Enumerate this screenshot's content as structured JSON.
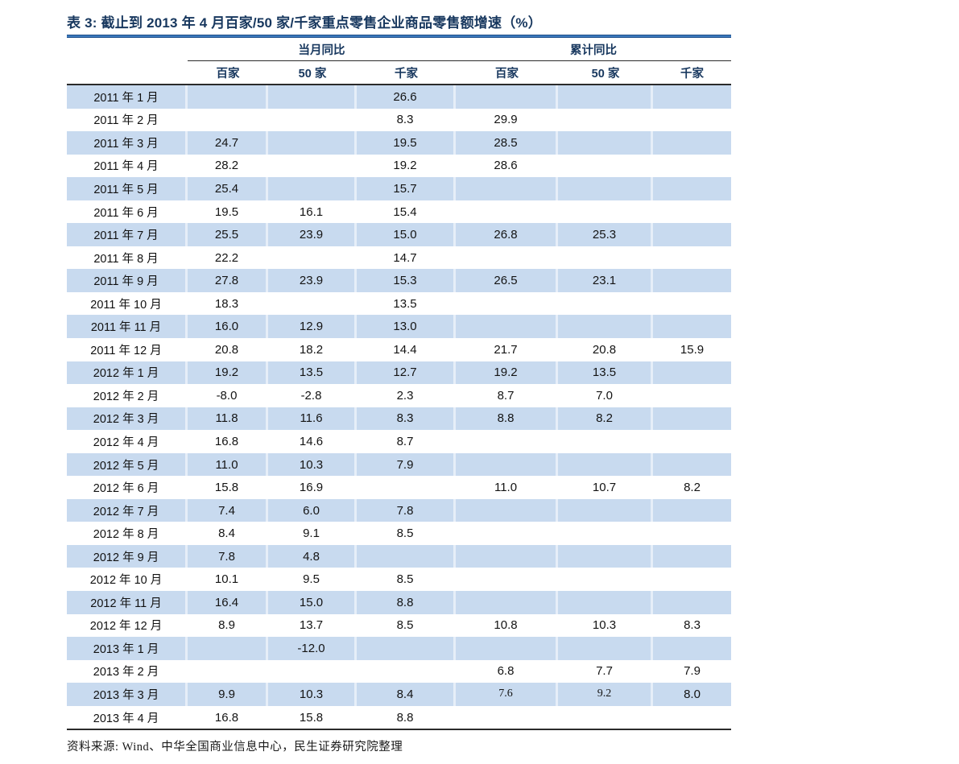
{
  "title": "表 3:  截止到 2013 年 4 月百家/50 家/千家重点零售企业商品零售额增速（%）",
  "source": "资料来源: Wind、中华全国商业信息中心，民生证券研究院整理",
  "colors": {
    "title_text": "#17375E",
    "header_text": "#17375E",
    "title_rule_blue": "#3B79BC",
    "dark_rule": "#2B2B2B",
    "row_band": "#C8DAEF"
  },
  "table": {
    "group_headers": [
      "当月同比",
      "累计同比"
    ],
    "sub_headers": [
      "百家",
      "50 家",
      "千家",
      "百家",
      "50 家",
      "千家"
    ],
    "rows": [
      {
        "label": "2011 年 1 月",
        "values": [
          "",
          "",
          "26.6",
          "",
          "",
          ""
        ]
      },
      {
        "label": "2011 年 2 月",
        "values": [
          "",
          "",
          "8.3",
          "29.9",
          "",
          ""
        ]
      },
      {
        "label": "2011 年 3 月",
        "values": [
          "24.7",
          "",
          "19.5",
          "28.5",
          "",
          ""
        ]
      },
      {
        "label": "2011 年 4 月",
        "values": [
          "28.2",
          "",
          "19.2",
          "28.6",
          "",
          ""
        ]
      },
      {
        "label": "2011 年 5 月",
        "values": [
          "25.4",
          "",
          "15.7",
          "",
          "",
          ""
        ]
      },
      {
        "label": "2011 年 6 月",
        "values": [
          "19.5",
          "16.1",
          "15.4",
          "",
          "",
          ""
        ]
      },
      {
        "label": "2011 年 7 月",
        "values": [
          "25.5",
          "23.9",
          "15.0",
          "26.8",
          "25.3",
          ""
        ]
      },
      {
        "label": "2011 年 8 月",
        "values": [
          "22.2",
          "",
          "14.7",
          "",
          "",
          ""
        ]
      },
      {
        "label": "2011 年 9 月",
        "values": [
          "27.8",
          "23.9",
          "15.3",
          "26.5",
          "23.1",
          ""
        ]
      },
      {
        "label": "2011 年 10 月",
        "values": [
          "18.3",
          "",
          "13.5",
          "",
          "",
          ""
        ]
      },
      {
        "label": "2011 年 11 月",
        "values": [
          "16.0",
          "12.9",
          "13.0",
          "",
          "",
          ""
        ]
      },
      {
        "label": "2011 年 12 月",
        "values": [
          "20.8",
          "18.2",
          "14.4",
          "21.7",
          "20.8",
          "15.9"
        ]
      },
      {
        "label": "2012 年 1 月",
        "values": [
          "19.2",
          "13.5",
          "12.7",
          "19.2",
          "13.5",
          ""
        ]
      },
      {
        "label": "2012 年 2 月",
        "values": [
          "-8.0",
          "-2.8",
          "2.3",
          "8.7",
          "7.0",
          ""
        ]
      },
      {
        "label": "2012 年 3 月",
        "values": [
          "11.8",
          "11.6",
          "8.3",
          "8.8",
          "8.2",
          ""
        ]
      },
      {
        "label": "2012 年 4 月",
        "values": [
          "16.8",
          "14.6",
          "8.7",
          "",
          "",
          ""
        ]
      },
      {
        "label": "2012 年 5 月",
        "values": [
          "11.0",
          "10.3",
          "7.9",
          "",
          "",
          ""
        ]
      },
      {
        "label": "2012 年 6 月",
        "values": [
          "15.8",
          "16.9",
          "",
          "11.0",
          "10.7",
          "8.2"
        ]
      },
      {
        "label": "2012 年 7 月",
        "values": [
          "7.4",
          "6.0",
          "7.8",
          "",
          "",
          ""
        ]
      },
      {
        "label": "2012 年 8 月",
        "values": [
          "8.4",
          "9.1",
          "8.5",
          "",
          "",
          ""
        ]
      },
      {
        "label": "2012 年 9 月",
        "values": [
          "7.8",
          "4.8",
          "",
          "",
          "",
          ""
        ]
      },
      {
        "label": "2012 年 10 月",
        "values": [
          "10.1",
          "9.5",
          "8.5",
          "",
          "",
          ""
        ]
      },
      {
        "label": "2012 年 11 月",
        "values": [
          "16.4",
          "15.0",
          "8.8",
          "",
          "",
          ""
        ]
      },
      {
        "label": "2012 年 12 月",
        "values": [
          "8.9",
          "13.7",
          "8.5",
          "10.8",
          "10.3",
          "8.3"
        ]
      },
      {
        "label": "2013 年 1 月",
        "values": [
          "",
          "-12.0",
          "",
          "",
          "",
          ""
        ]
      },
      {
        "label": "2013 年 2 月",
        "values": [
          "",
          "",
          "",
          "6.8",
          "7.7",
          "7.9"
        ]
      },
      {
        "label": "2013 年 3 月",
        "values": [
          "9.9",
          "10.3",
          "8.4",
          "7.6",
          "9.2",
          "8.0"
        ],
        "serif_cols": [
          3,
          4
        ]
      },
      {
        "label": "2013 年 4 月",
        "values": [
          "16.8",
          "15.8",
          "8.8",
          "",
          "",
          ""
        ]
      }
    ]
  }
}
